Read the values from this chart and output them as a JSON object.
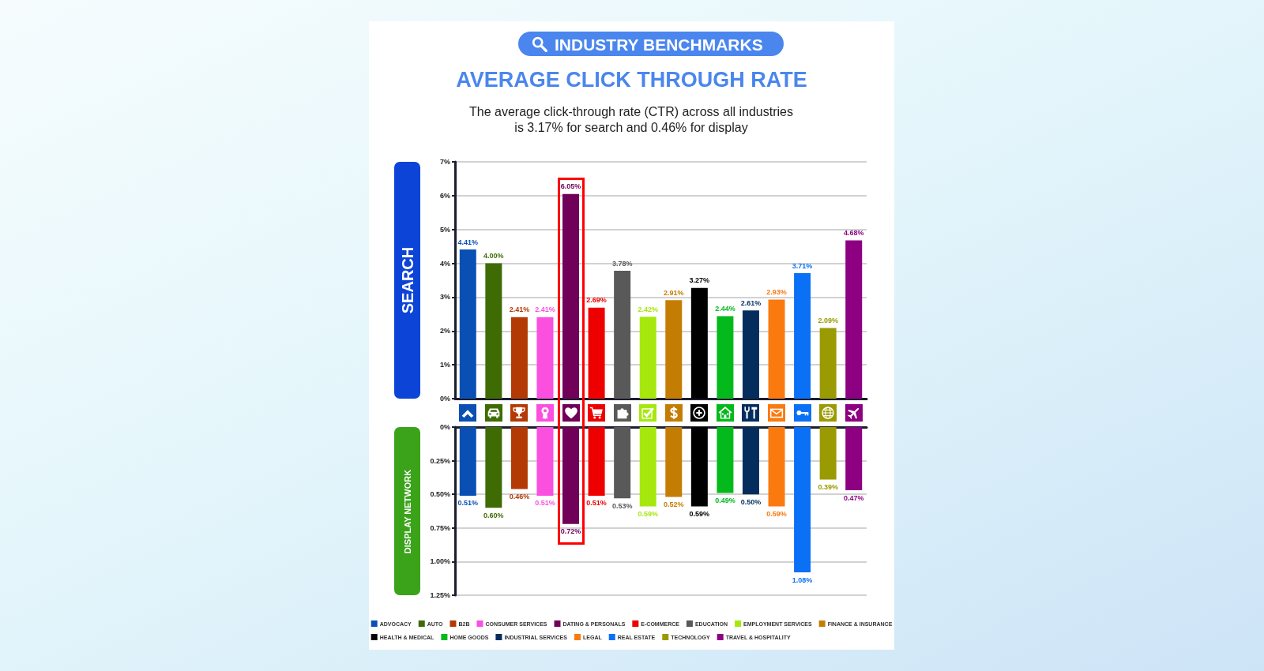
{
  "chart_data": [
    {
      "type": "bar",
      "title": "AVERAGE CLICK THROUGH RATE",
      "subtitle": "The average click-through rate (CTR) across all industries is 3.17% for search and 0.46% for display",
      "annotations": [
        "INDUSTRY BENCHMARKS"
      ],
      "ylabel": "SEARCH",
      "stacked": true,
      "categories": [
        null,
        null,
        null,
        null,
        null,
        null,
        null,
        null,
        null,
        null,
        null,
        null,
        null,
        null,
        null,
        null
      ],
      "series": [
        {
          "color": "#0a50b4",
          "values": [
            4.41,
            null,
            null,
            null,
            null,
            null,
            null,
            null,
            null,
            null,
            null,
            null,
            null,
            null,
            null,
            null
          ],
          "value_labels": [
            "4.41%",
            null,
            null,
            null,
            null,
            null,
            null,
            null,
            null,
            null,
            null,
            null,
            null,
            null,
            null,
            null
          ]
        },
        {
          "color": "#3f6b05",
          "values": [
            null,
            4.0,
            null,
            null,
            null,
            null,
            null,
            null,
            null,
            null,
            null,
            null,
            null,
            null,
            null,
            null
          ],
          "value_labels": [
            null,
            "4.00%",
            null,
            null,
            null,
            null,
            null,
            null,
            null,
            null,
            null,
            null,
            null,
            null,
            null,
            null
          ]
        },
        {
          "color": "#b33a05",
          "values": [
            null,
            null,
            2.41,
            null,
            null,
            null,
            null,
            null,
            null,
            null,
            null,
            null,
            null,
            null,
            null,
            null
          ],
          "value_labels": [
            null,
            null,
            "2.41%",
            null,
            null,
            null,
            null,
            null,
            null,
            null,
            null,
            null,
            null,
            null,
            null,
            null
          ]
        },
        {
          "color": "#fb4fe0",
          "values": [
            null,
            null,
            null,
            2.41,
            null,
            null,
            null,
            null,
            null,
            null,
            null,
            null,
            null,
            null,
            null,
            null
          ],
          "value_labels": [
            null,
            null,
            null,
            "2.41%",
            null,
            null,
            null,
            null,
            null,
            null,
            null,
            null,
            null,
            null,
            null,
            null
          ]
        },
        {
          "color": "#710058",
          "values": [
            null,
            null,
            null,
            null,
            6.05,
            null,
            null,
            null,
            null,
            null,
            null,
            null,
            null,
            null,
            null,
            null
          ],
          "value_labels": [
            null,
            null,
            null,
            null,
            "6.05%",
            null,
            null,
            null,
            null,
            null,
            null,
            null,
            null,
            null,
            null,
            null
          ]
        },
        {
          "color": "#ee0000",
          "values": [
            null,
            null,
            null,
            null,
            null,
            2.69,
            null,
            null,
            null,
            null,
            null,
            null,
            null,
            null,
            null,
            null
          ],
          "value_labels": [
            null,
            null,
            null,
            null,
            null,
            "2.69%",
            null,
            null,
            null,
            null,
            null,
            null,
            null,
            null,
            null,
            null
          ]
        },
        {
          "color": "#595959",
          "values": [
            null,
            null,
            null,
            null,
            null,
            null,
            3.78,
            null,
            null,
            null,
            null,
            null,
            null,
            null,
            null,
            null
          ],
          "value_labels": [
            null,
            null,
            null,
            null,
            null,
            null,
            "3.78%",
            null,
            null,
            null,
            null,
            null,
            null,
            null,
            null,
            null
          ]
        },
        {
          "color": "#a6e80e",
          "values": [
            null,
            null,
            null,
            null,
            null,
            null,
            null,
            2.42,
            null,
            null,
            null,
            null,
            null,
            null,
            null,
            null
          ],
          "value_labels": [
            null,
            null,
            null,
            null,
            null,
            null,
            null,
            "2.42%",
            null,
            null,
            null,
            null,
            null,
            null,
            null,
            null
          ]
        },
        {
          "color": "#c47d03",
          "values": [
            null,
            null,
            null,
            null,
            null,
            null,
            null,
            null,
            2.91,
            null,
            null,
            null,
            null,
            null,
            null,
            null
          ],
          "value_labels": [
            null,
            null,
            null,
            null,
            null,
            null,
            null,
            null,
            "2.91%",
            null,
            null,
            null,
            null,
            null,
            null,
            null
          ]
        },
        {
          "color": "#000000",
          "values": [
            null,
            null,
            null,
            null,
            null,
            null,
            null,
            null,
            null,
            3.27,
            null,
            null,
            null,
            null,
            null,
            null
          ],
          "value_labels": [
            null,
            null,
            null,
            null,
            null,
            null,
            null,
            null,
            null,
            "3.27%",
            null,
            null,
            null,
            null,
            null,
            null
          ]
        },
        {
          "color": "#04b91b",
          "values": [
            null,
            null,
            null,
            null,
            null,
            null,
            null,
            null,
            null,
            null,
            2.44,
            null,
            null,
            null,
            null,
            null
          ],
          "value_labels": [
            null,
            null,
            null,
            null,
            null,
            null,
            null,
            null,
            null,
            null,
            "2.44%",
            null,
            null,
            null,
            null,
            null
          ]
        },
        {
          "color": "#042d5e",
          "values": [
            null,
            null,
            null,
            null,
            null,
            null,
            null,
            null,
            null,
            null,
            null,
            2.61,
            null,
            null,
            null,
            null
          ],
          "value_labels": [
            null,
            null,
            null,
            null,
            null,
            null,
            null,
            null,
            null,
            null,
            null,
            "2.61%",
            null,
            null,
            null,
            null
          ]
        },
        {
          "color": "#fb7a10",
          "values": [
            null,
            null,
            null,
            null,
            null,
            null,
            null,
            null,
            null,
            null,
            null,
            null,
            2.93,
            null,
            null,
            null
          ],
          "value_labels": [
            null,
            null,
            null,
            null,
            null,
            null,
            null,
            null,
            null,
            null,
            null,
            null,
            "2.93%",
            null,
            null,
            null
          ]
        },
        {
          "color": "#0a70f5",
          "values": [
            null,
            null,
            null,
            null,
            null,
            null,
            null,
            null,
            null,
            null,
            null,
            null,
            null,
            3.71,
            null,
            null
          ],
          "value_labels": [
            null,
            null,
            null,
            null,
            null,
            null,
            null,
            null,
            null,
            null,
            null,
            null,
            null,
            "3.71%",
            null,
            null
          ]
        },
        {
          "color": "#9a9a02",
          "values": [
            null,
            null,
            null,
            null,
            null,
            null,
            null,
            null,
            null,
            null,
            null,
            null,
            null,
            null,
            2.09,
            null
          ],
          "value_labels": [
            null,
            null,
            null,
            null,
            null,
            null,
            null,
            null,
            null,
            null,
            null,
            null,
            null,
            null,
            "2.09%",
            null
          ]
        },
        {
          "color": "#8c0081",
          "values": [
            null,
            null,
            null,
            null,
            null,
            null,
            null,
            null,
            null,
            null,
            null,
            null,
            null,
            null,
            null,
            4.68
          ],
          "value_labels": [
            null,
            null,
            null,
            null,
            null,
            null,
            null,
            null,
            null,
            null,
            null,
            null,
            null,
            null,
            null,
            "4.68%"
          ]
        }
      ],
      "ylim": [
        0,
        7
      ],
      "yticks": [
        {
          "value": 0,
          "label": "0%"
        },
        {
          "value": 1,
          "label": "1%"
        },
        {
          "value": 2,
          "label": "2%"
        },
        {
          "value": 3,
          "label": "3%"
        },
        {
          "value": 4,
          "label": "4%"
        },
        {
          "value": 5,
          "label": "5%"
        },
        {
          "value": 6,
          "label": "6%"
        },
        {
          "value": 7,
          "label": "7%"
        }
      ],
      "grid": "y",
      "tick_labels": "y"
    },
    {
      "type": "bar",
      "ylabel": "DISPLAY NETWORK",
      "stacked": true,
      "categories": [
        null,
        null,
        null,
        null,
        null,
        null,
        null,
        null,
        null,
        null,
        null,
        null,
        null,
        null,
        null,
        null
      ],
      "series": [
        {
          "name": "ADVOCACY",
          "color": "#0a50b4",
          "values": [
            0.51,
            null,
            null,
            null,
            null,
            null,
            null,
            null,
            null,
            null,
            null,
            null,
            null,
            null,
            null,
            null
          ],
          "value_labels": [
            "0.51%",
            null,
            null,
            null,
            null,
            null,
            null,
            null,
            null,
            null,
            null,
            null,
            null,
            null,
            null,
            null
          ]
        },
        {
          "name": "AUTO",
          "color": "#3f6b05",
          "values": [
            null,
            0.6,
            null,
            null,
            null,
            null,
            null,
            null,
            null,
            null,
            null,
            null,
            null,
            null,
            null,
            null
          ],
          "value_labels": [
            null,
            "0.60%",
            null,
            null,
            null,
            null,
            null,
            null,
            null,
            null,
            null,
            null,
            null,
            null,
            null,
            null
          ]
        },
        {
          "name": "B2B",
          "color": "#b33a05",
          "values": [
            null,
            null,
            0.46,
            null,
            null,
            null,
            null,
            null,
            null,
            null,
            null,
            null,
            null,
            null,
            null,
            null
          ],
          "value_labels": [
            null,
            null,
            "0.46%",
            null,
            null,
            null,
            null,
            null,
            null,
            null,
            null,
            null,
            null,
            null,
            null,
            null
          ]
        },
        {
          "name": "CONSUMER SERVICES",
          "color": "#fb4fe0",
          "values": [
            null,
            null,
            null,
            0.51,
            null,
            null,
            null,
            null,
            null,
            null,
            null,
            null,
            null,
            null,
            null,
            null
          ],
          "value_labels": [
            null,
            null,
            null,
            "0.51%",
            null,
            null,
            null,
            null,
            null,
            null,
            null,
            null,
            null,
            null,
            null,
            null
          ]
        },
        {
          "name": "DATING & PERSONALS",
          "color": "#710058",
          "values": [
            null,
            null,
            null,
            null,
            0.72,
            null,
            null,
            null,
            null,
            null,
            null,
            null,
            null,
            null,
            null,
            null
          ],
          "value_labels": [
            null,
            null,
            null,
            null,
            "0.72%",
            null,
            null,
            null,
            null,
            null,
            null,
            null,
            null,
            null,
            null,
            null
          ]
        },
        {
          "name": "E-COMMERCE",
          "color": "#ee0000",
          "values": [
            null,
            null,
            null,
            null,
            null,
            0.51,
            null,
            null,
            null,
            null,
            null,
            null,
            null,
            null,
            null,
            null
          ],
          "value_labels": [
            null,
            null,
            null,
            null,
            null,
            "0.51%",
            null,
            null,
            null,
            null,
            null,
            null,
            null,
            null,
            null,
            null
          ]
        },
        {
          "name": "EDUCATION",
          "color": "#595959",
          "values": [
            null,
            null,
            null,
            null,
            null,
            null,
            0.53,
            null,
            null,
            null,
            null,
            null,
            null,
            null,
            null,
            null
          ],
          "value_labels": [
            null,
            null,
            null,
            null,
            null,
            null,
            "0.53%",
            null,
            null,
            null,
            null,
            null,
            null,
            null,
            null,
            null
          ]
        },
        {
          "name": "EMPLOYMENT SERVICES",
          "color": "#a6e80e",
          "values": [
            null,
            null,
            null,
            null,
            null,
            null,
            null,
            0.59,
            null,
            null,
            null,
            null,
            null,
            null,
            null,
            null
          ],
          "value_labels": [
            null,
            null,
            null,
            null,
            null,
            null,
            null,
            "0.59%",
            null,
            null,
            null,
            null,
            null,
            null,
            null,
            null
          ]
        },
        {
          "name": "FINANCE & INSURANCE",
          "color": "#c47d03",
          "values": [
            null,
            null,
            null,
            null,
            null,
            null,
            null,
            null,
            0.52,
            null,
            null,
            null,
            null,
            null,
            null,
            null
          ],
          "value_labels": [
            null,
            null,
            null,
            null,
            null,
            null,
            null,
            null,
            "0.52%",
            null,
            null,
            null,
            null,
            null,
            null,
            null
          ]
        },
        {
          "name": "HEALTH & MEDICAL",
          "color": "#000000",
          "values": [
            null,
            null,
            null,
            null,
            null,
            null,
            null,
            null,
            null,
            0.59,
            null,
            null,
            null,
            null,
            null,
            null
          ],
          "value_labels": [
            null,
            null,
            null,
            null,
            null,
            null,
            null,
            null,
            null,
            "0.59%",
            null,
            null,
            null,
            null,
            null,
            null
          ]
        },
        {
          "name": "HOME GOODS",
          "color": "#04b91b",
          "values": [
            null,
            null,
            null,
            null,
            null,
            null,
            null,
            null,
            null,
            null,
            0.49,
            null,
            null,
            null,
            null,
            null
          ],
          "value_labels": [
            null,
            null,
            null,
            null,
            null,
            null,
            null,
            null,
            null,
            null,
            "0.49%",
            null,
            null,
            null,
            null,
            null
          ]
        },
        {
          "name": "INDUSTRIAL SERVICES",
          "color": "#042d5e",
          "values": [
            null,
            null,
            null,
            null,
            null,
            null,
            null,
            null,
            null,
            null,
            null,
            0.5,
            null,
            null,
            null,
            null
          ],
          "value_labels": [
            null,
            null,
            null,
            null,
            null,
            null,
            null,
            null,
            null,
            null,
            null,
            "0.50%",
            null,
            null,
            null,
            null
          ]
        },
        {
          "name": "LEGAL",
          "color": "#fb7a10",
          "values": [
            null,
            null,
            null,
            null,
            null,
            null,
            null,
            null,
            null,
            null,
            null,
            null,
            0.59,
            null,
            null,
            null
          ],
          "value_labels": [
            null,
            null,
            null,
            null,
            null,
            null,
            null,
            null,
            null,
            null,
            null,
            null,
            "0.59%",
            null,
            null,
            null
          ]
        },
        {
          "name": "REAL ESTATE",
          "color": "#0a70f5",
          "values": [
            null,
            null,
            null,
            null,
            null,
            null,
            null,
            null,
            null,
            null,
            null,
            null,
            null,
            1.08,
            null,
            null
          ],
          "value_labels": [
            null,
            null,
            null,
            null,
            null,
            null,
            null,
            null,
            null,
            null,
            null,
            null,
            null,
            "1.08%",
            null,
            null
          ]
        },
        {
          "name": "TECHNOLOGY",
          "color": "#9a9a02",
          "values": [
            null,
            null,
            null,
            null,
            null,
            null,
            null,
            null,
            null,
            null,
            null,
            null,
            null,
            null,
            0.39,
            null
          ],
          "value_labels": [
            null,
            null,
            null,
            null,
            null,
            null,
            null,
            null,
            null,
            null,
            null,
            null,
            null,
            null,
            "0.39%",
            null
          ]
        },
        {
          "name": "TRAVEL & HOSPITALITY",
          "color": "#8c0081",
          "values": [
            null,
            null,
            null,
            null,
            null,
            null,
            null,
            null,
            null,
            null,
            null,
            null,
            null,
            null,
            null,
            0.47
          ],
          "value_labels": [
            null,
            null,
            null,
            null,
            null,
            null,
            null,
            null,
            null,
            null,
            null,
            null,
            null,
            null,
            null,
            "0.47%"
          ]
        }
      ],
      "ylim": [
        1.25,
        0
      ],
      "yticks": [
        {
          "value": 0,
          "label": "0%"
        },
        {
          "value": 0.25,
          "label": "0.25%"
        },
        {
          "value": 0.5,
          "label": "0.50%"
        },
        {
          "value": 0.75,
          "label": "0.75%"
        },
        {
          "value": 1,
          "label": "1.00%"
        },
        {
          "value": 1.25,
          "label": "1.25%"
        }
      ],
      "grid": "y",
      "tick_labels": "y",
      "legend": "bottom"
    }
  ]
}
